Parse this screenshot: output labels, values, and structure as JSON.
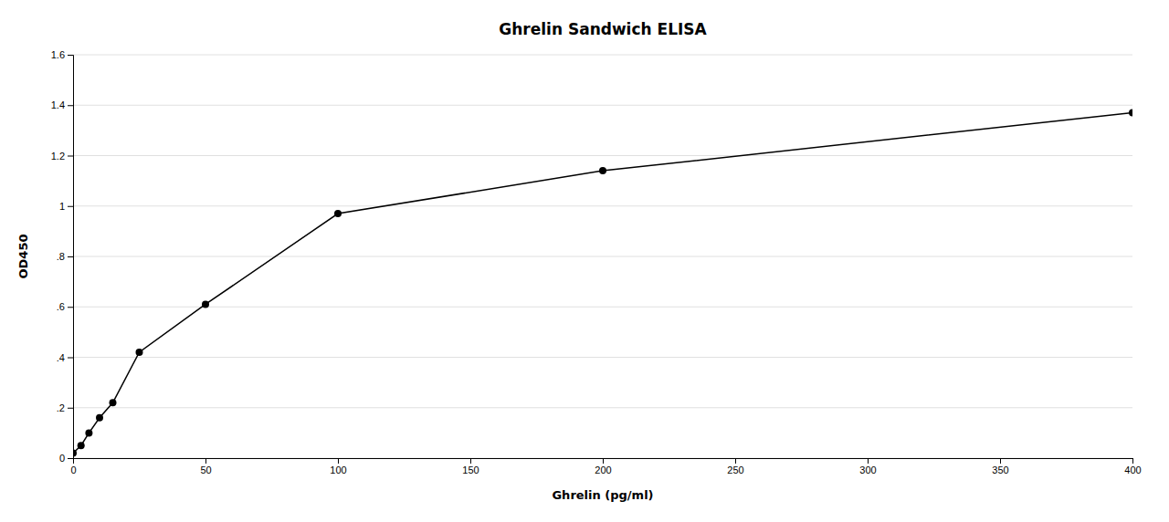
{
  "chart_data": {
    "type": "line",
    "title": "Ghrelin Sandwich ELISA",
    "xlabel": "Ghrelin (pg/ml)",
    "ylabel": "OD450",
    "x": [
      0,
      3,
      6,
      10,
      15,
      25,
      50,
      100,
      200,
      400
    ],
    "values": [
      0.02,
      0.05,
      0.1,
      0.16,
      0.22,
      0.42,
      0.61,
      0.97,
      1.14,
      1.37
    ],
    "xlim": [
      0,
      400
    ],
    "ylim": [
      0,
      1.6
    ],
    "xticks": [
      0,
      50,
      100,
      150,
      200,
      250,
      300,
      350,
      400
    ],
    "yticks": [
      0,
      {
        "value": 0.2,
        "label": ".2"
      },
      {
        "value": 0.4,
        "label": ".4"
      },
      {
        "value": 0.6,
        "label": ".6"
      },
      {
        "value": 0.8,
        "label": ".8"
      },
      1,
      1.2,
      1.4,
      1.6
    ],
    "grid": true,
    "color": "#000000",
    "marker": "circle"
  }
}
